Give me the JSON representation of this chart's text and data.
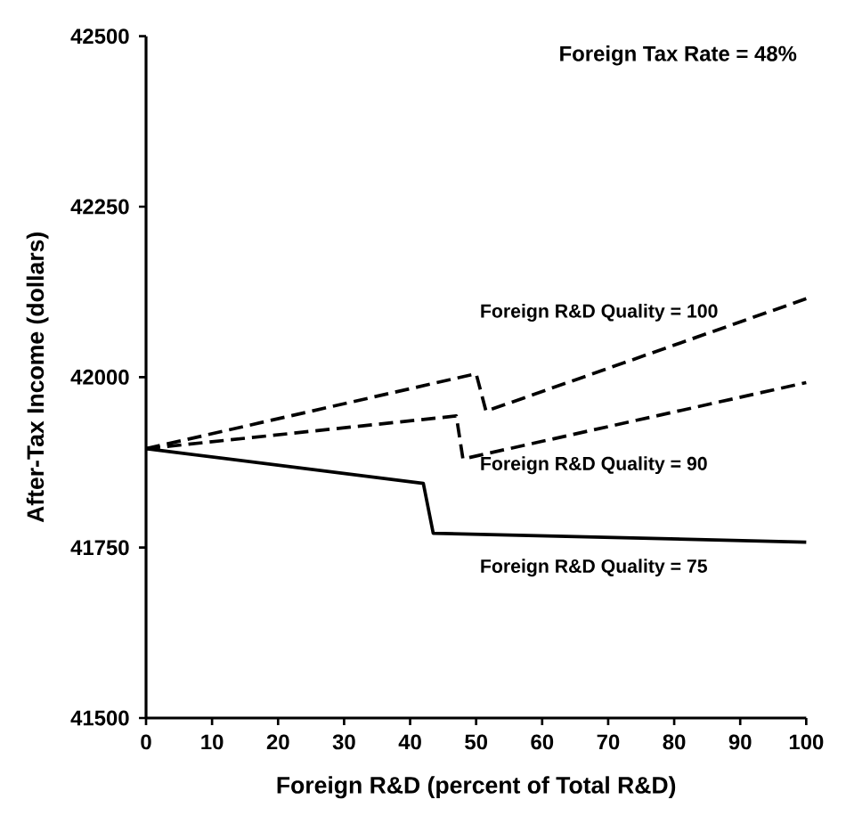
{
  "chart_data": {
    "type": "line",
    "title": "Foreign Tax Rate = 48%",
    "xlabel": "Foreign R&D (percent of Total R&D)",
    "ylabel": "After-Tax Income (dollars)",
    "series": [
      {
        "name": "Foreign R&D Quality = 100",
        "color": "#000000",
        "line_style": "dashed",
        "x": [
          0,
          50,
          51.5,
          100
        ],
        "values": [
          41895,
          42005,
          41950,
          42115
        ]
      },
      {
        "name": "Foreign R&D Quality = 90",
        "color": "#000000",
        "line_style": "dashed",
        "x": [
          0,
          47,
          48,
          100
        ],
        "values": [
          41895,
          41943,
          41880,
          41992
        ]
      },
      {
        "name": "Foreign R&D Quality = 75",
        "color": "#000000",
        "line_style": "solid",
        "x": [
          0,
          42,
          43.5,
          100
        ],
        "values": [
          41895,
          41844,
          41771,
          41758
        ]
      }
    ],
    "xlim": [
      0,
      100
    ],
    "ylim": [
      41500,
      42500
    ],
    "xticks": [
      0,
      10,
      20,
      30,
      40,
      50,
      60,
      70,
      80,
      90,
      100
    ],
    "yticks": [
      41500,
      41750,
      42000,
      42250,
      42500
    ],
    "grid": false,
    "legend": false,
    "marker": "none"
  }
}
